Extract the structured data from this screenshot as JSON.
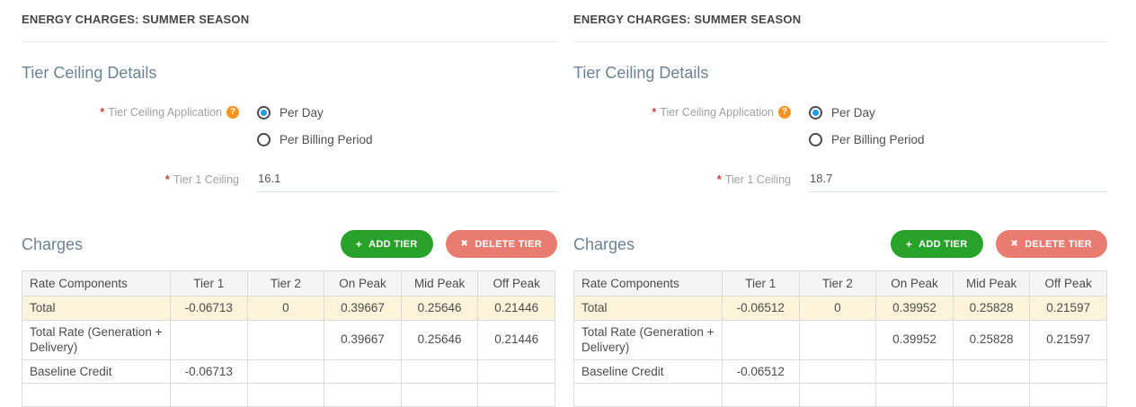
{
  "glyphs": {
    "required": "*",
    "help": "?",
    "add": "+",
    "delete": "✖"
  },
  "colors": {
    "add_button": "#28a22a",
    "delete_button": "#e87c70",
    "highlight_row": "#fbf4da",
    "radio_selected": "#1e9be9",
    "help_icon": "#f7941e",
    "required_asterisk": "#cc4437",
    "heading": "#6b8494"
  },
  "panels": [
    {
      "section_title": "ENERGY CHARGES: SUMMER SEASON",
      "tier_ceiling": {
        "heading": "Tier Ceiling Details",
        "application_label": "Tier Ceiling Application",
        "option_per_day": "Per Day",
        "option_per_billing": "Per Billing Period",
        "selected_option": "Per Day",
        "ceiling_label": "Tier 1 Ceiling",
        "ceiling_value": "16.1"
      },
      "charges": {
        "heading": "Charges",
        "add_tier_label": "ADD TIER",
        "delete_tier_label": "DELETE TIER",
        "table": {
          "headers": [
            "Rate Components",
            "Tier 1",
            "Tier 2",
            "On Peak",
            "Mid Peak",
            "Off Peak"
          ],
          "rows": [
            {
              "component": "Total",
              "values": [
                "-0.06713",
                "0",
                "0.39667",
                "0.25646",
                "0.21446"
              ],
              "highlight": true
            },
            {
              "component": "Total Rate (Generation + Delivery)",
              "values": [
                "",
                "",
                "0.39667",
                "0.25646",
                "0.21446"
              ],
              "highlight": false
            },
            {
              "component": "Baseline Credit",
              "values": [
                "-0.06713",
                "",
                "",
                "",
                ""
              ],
              "highlight": false
            },
            {
              "component": "",
              "values": [
                "",
                "",
                "",
                "",
                ""
              ],
              "highlight": false
            }
          ]
        }
      }
    },
    {
      "section_title": "ENERGY CHARGES: SUMMER SEASON",
      "tier_ceiling": {
        "heading": "Tier Ceiling Details",
        "application_label": "Tier Ceiling Application",
        "option_per_day": "Per Day",
        "option_per_billing": "Per Billing Period",
        "selected_option": "Per Day",
        "ceiling_label": "Tier 1 Ceiling",
        "ceiling_value": "18.7"
      },
      "charges": {
        "heading": "Charges",
        "add_tier_label": "ADD TIER",
        "delete_tier_label": "DELETE TIER",
        "table": {
          "headers": [
            "Rate Components",
            "Tier 1",
            "Tier 2",
            "On Peak",
            "Mid Peak",
            "Off Peak"
          ],
          "rows": [
            {
              "component": "Total",
              "values": [
                "-0.06512",
                "0",
                "0.39952",
                "0.25828",
                "0.21597"
              ],
              "highlight": true
            },
            {
              "component": "Total Rate (Generation + Delivery)",
              "values": [
                "",
                "",
                "0.39952",
                "0.25828",
                "0.21597"
              ],
              "highlight": false
            },
            {
              "component": "Baseline Credit",
              "values": [
                "-0.06512",
                "",
                "",
                "",
                ""
              ],
              "highlight": false
            },
            {
              "component": "",
              "values": [
                "",
                "",
                "",
                "",
                ""
              ],
              "highlight": false
            }
          ]
        }
      }
    }
  ]
}
